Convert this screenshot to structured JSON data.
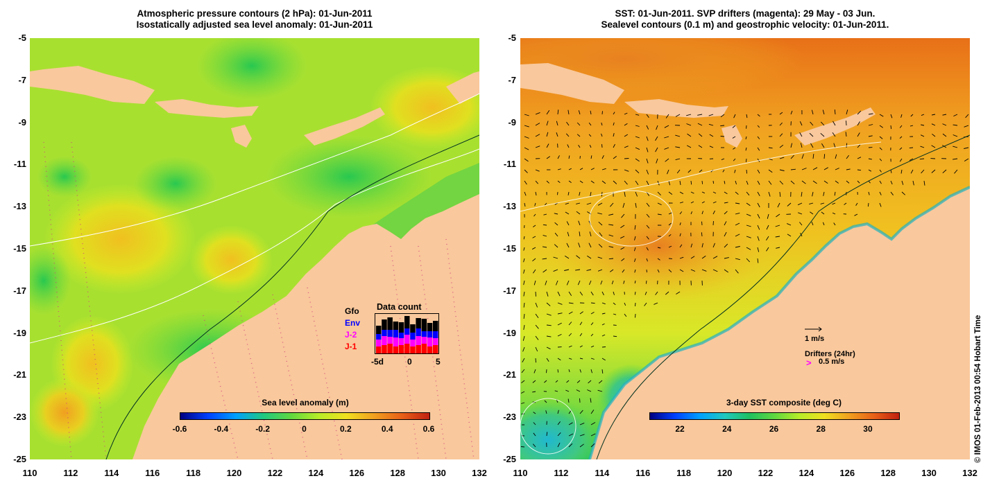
{
  "left_panel": {
    "title_line1": "Atmospheric pressure contours (2 hPa): 01-Jun-2011",
    "title_line2": "Isostatically adjusted sea level anomaly: 01-Jun-2011",
    "colorbar_label": "Sea level anomaly (m)",
    "colorbar_ticks": [
      "-0.6",
      "-0.4",
      "-0.2",
      "0",
      "0.2",
      "0.4",
      "0.6"
    ],
    "colorbar_range": [
      -0.6,
      0.6
    ],
    "data_count": {
      "title": "Data count",
      "legend": [
        {
          "label": "Gfo",
          "color": "#000000"
        },
        {
          "label": "Env",
          "color": "#0000ff"
        },
        {
          "label": "J-2",
          "color": "#ff00ff"
        },
        {
          "label": "J-1",
          "color": "#ff0000"
        }
      ],
      "x_ticks": [
        "-5d",
        "0",
        "5"
      ]
    }
  },
  "right_panel": {
    "title_line1": "SST: 01-Jun-2011. SVP drifters (magenta): 29 May - 03 Jun.",
    "title_line2": "Sealevel contours (0.1 m) and geostrophic velocity: 01-Jun-2011.",
    "colorbar_label": "3-day SST composite (deg C)",
    "colorbar_ticks": [
      "22",
      "24",
      "26",
      "28",
      "30"
    ],
    "velocity_scale_label": "1 m/s",
    "drifters_label": "Drifters (24hr)",
    "drifters_symbol": ">",
    "drifters_speed": "0.5 m/s"
  },
  "axes": {
    "y_ticks": [
      "-5",
      "-7",
      "-9",
      "-11",
      "-13",
      "-15",
      "-17",
      "-19",
      "-21",
      "-23",
      "-25"
    ],
    "x_ticks": [
      "110",
      "112",
      "114",
      "116",
      "118",
      "120",
      "122",
      "124",
      "126",
      "128",
      "130",
      "132"
    ],
    "lon_range": [
      110,
      132
    ],
    "lat_range": [
      -25,
      -5
    ]
  },
  "colors": {
    "land": "#f9c89c",
    "ssa_ocean": "#9be632",
    "sst_ocean": "#f0a020"
  },
  "copyright": "© IMOS 01-Feb-2013 00:54 Hobart Time"
}
